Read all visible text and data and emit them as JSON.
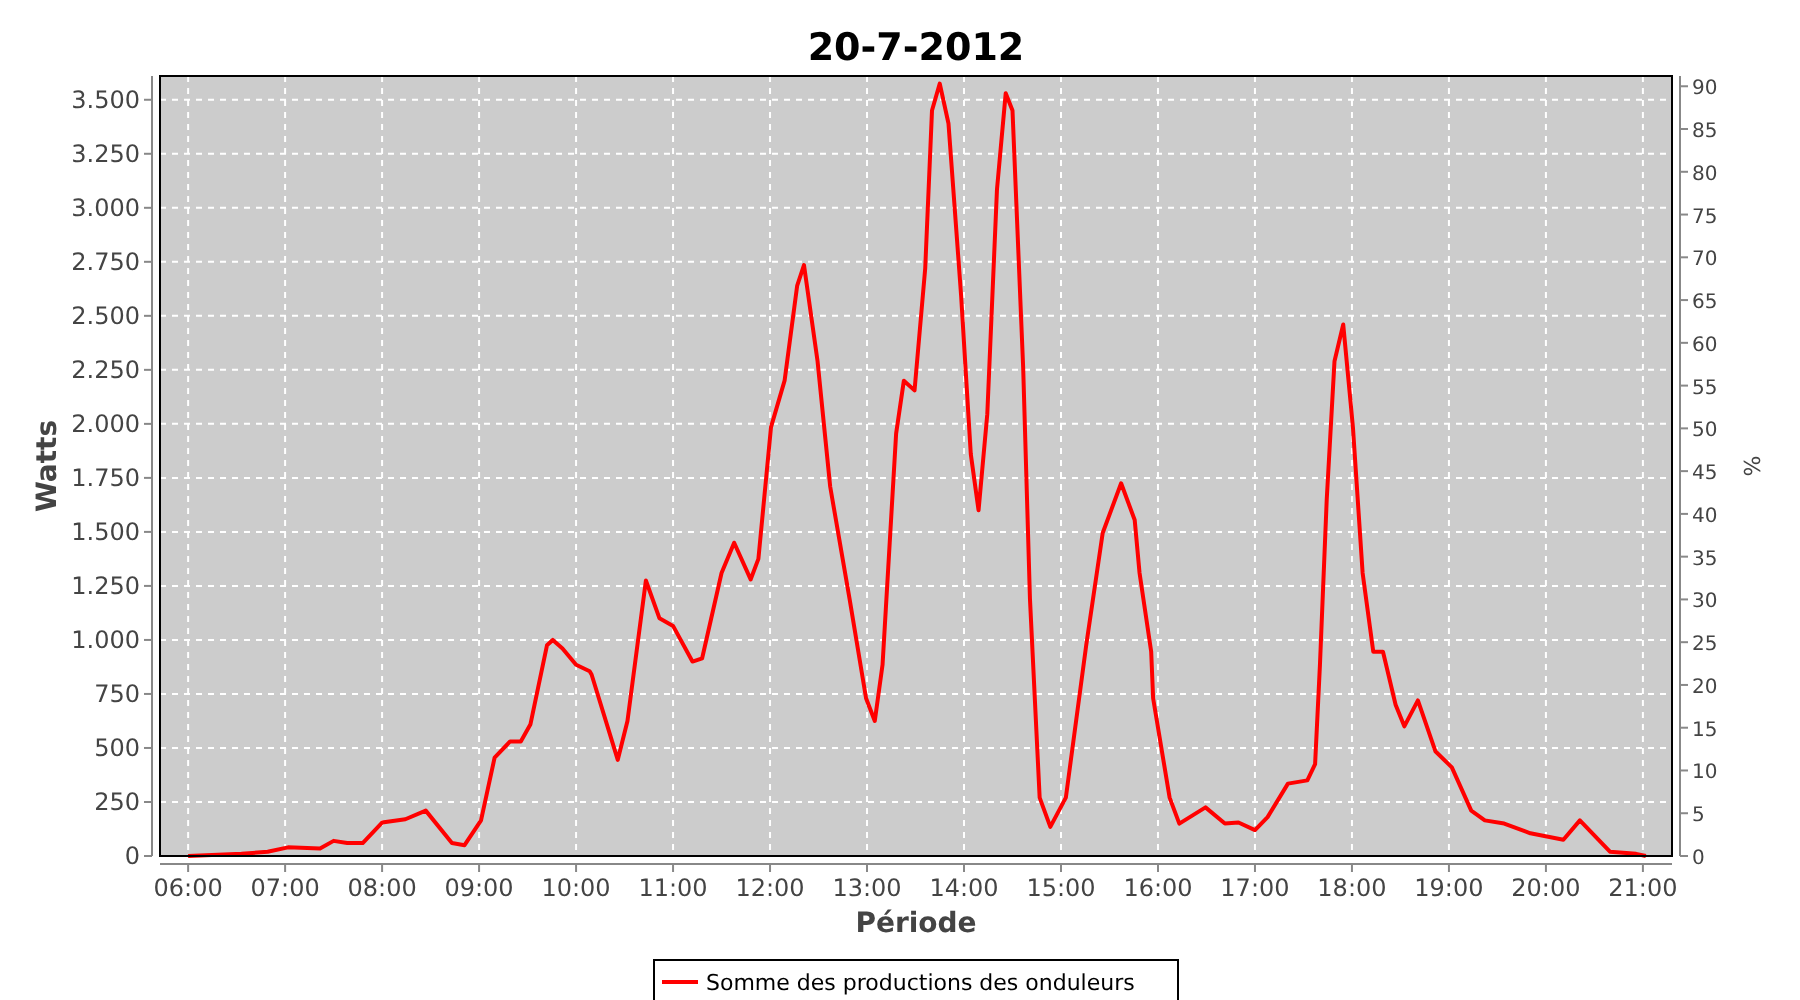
{
  "chart_data": {
    "type": "line",
    "title": "20-7-2012",
    "xlabel": "Période",
    "ylabel": "Watts",
    "y2label": "%",
    "xlim": [
      5.71,
      21.3
    ],
    "xticks": [
      {
        "value": 6,
        "label": "06:00"
      },
      {
        "value": 7,
        "label": "07:00"
      },
      {
        "value": 8,
        "label": "08:00"
      },
      {
        "value": 9,
        "label": "09:00"
      },
      {
        "value": 10,
        "label": "10:00"
      },
      {
        "value": 11,
        "label": "11:00"
      },
      {
        "value": 12,
        "label": "12:00"
      },
      {
        "value": 13,
        "label": "13:00"
      },
      {
        "value": 14,
        "label": "14:00"
      },
      {
        "value": 15,
        "label": "15:00"
      },
      {
        "value": 16,
        "label": "16:00"
      },
      {
        "value": 17,
        "label": "17:00"
      },
      {
        "value": 18,
        "label": "18:00"
      },
      {
        "value": 19,
        "label": "19:00"
      },
      {
        "value": 20,
        "label": "20:00"
      },
      {
        "value": 21,
        "label": "21:00"
      }
    ],
    "ylim": [
      0,
      3610
    ],
    "yticks": [
      0,
      250,
      500,
      750,
      {
        "value": 1000,
        "label": "1.000"
      },
      {
        "value": 1250,
        "label": "1.250"
      },
      {
        "value": 1500,
        "label": "1.500"
      },
      {
        "value": 1750,
        "label": "1.750"
      },
      {
        "value": 2000,
        "label": "2.000"
      },
      {
        "value": 2250,
        "label": "2.250"
      },
      {
        "value": 2500,
        "label": "2.500"
      },
      {
        "value": 2750,
        "label": "2.750"
      },
      {
        "value": 3000,
        "label": "3.000"
      },
      {
        "value": 3250,
        "label": "3.250"
      },
      {
        "value": 3500,
        "label": "3.500"
      }
    ],
    "y2lim": [
      0,
      91.2
    ],
    "y2ticks": [
      0,
      5,
      10,
      15,
      20,
      25,
      30,
      35,
      40,
      45,
      50,
      55,
      60,
      65,
      70,
      75,
      80,
      85,
      90
    ],
    "grid": true,
    "legend": "bottom",
    "marker": "none",
    "line_style": "solid",
    "series": [
      {
        "name": "Somme des productions des onduleurs",
        "color": "#ff0000",
        "x": [
          6.0,
          6.55,
          6.82,
          7.03,
          7.36,
          7.5,
          7.64,
          7.8,
          8.0,
          8.24,
          8.45,
          8.72,
          8.85,
          9.02,
          9.16,
          9.32,
          9.43,
          9.53,
          9.7,
          9.76,
          9.86,
          10.0,
          10.14,
          10.16,
          10.43,
          10.53,
          10.72,
          10.86,
          11.0,
          11.2,
          11.3,
          11.5,
          11.63,
          11.8,
          11.88,
          12.01,
          12.15,
          12.28,
          12.35,
          12.49,
          12.62,
          12.82,
          12.99,
          13.08,
          13.16,
          13.3,
          13.38,
          13.49,
          13.6,
          13.67,
          13.75,
          13.84,
          13.97,
          14.07,
          14.15,
          14.24,
          14.34,
          14.43,
          14.5,
          14.61,
          14.68,
          14.78,
          14.89,
          15.05,
          15.26,
          15.43,
          15.62,
          15.76,
          15.81,
          15.93,
          15.95,
          16.12,
          16.22,
          16.49,
          16.69,
          16.83,
          17.0,
          17.13,
          17.34,
          17.54,
          17.62,
          17.67,
          17.74,
          17.82,
          17.91,
          18.01,
          18.11,
          18.22,
          18.32,
          18.45,
          18.54,
          18.68,
          18.86,
          19.03,
          19.23,
          19.37,
          19.57,
          19.84,
          20.18,
          20.35,
          20.66,
          20.93,
          21.03
        ],
        "values": [
          0,
          10,
          20,
          40,
          35,
          70,
          60,
          60,
          155,
          170,
          210,
          60,
          50,
          165,
          455,
          530,
          530,
          610,
          975,
          1000,
          960,
          885,
          855,
          840,
          445,
          625,
          1275,
          1100,
          1065,
          900,
          915,
          1310,
          1450,
          1280,
          1375,
          1985,
          2200,
          2640,
          2735,
          2290,
          1710,
          1190,
          730,
          625,
          885,
          1955,
          2200,
          2155,
          2720,
          3450,
          3575,
          3390,
          2595,
          1860,
          1600,
          2045,
          3085,
          3530,
          3450,
          2260,
          1190,
          270,
          135,
          270,
          975,
          1495,
          1725,
          1555,
          1310,
          945,
          730,
          270,
          150,
          225,
          150,
          155,
          120,
          180,
          335,
          350,
          425,
          885,
          1650,
          2290,
          2460,
          1985,
          1310,
          945,
          945,
          700,
          600,
          720,
          485,
          410,
          210,
          165,
          150,
          105,
          75,
          165,
          20,
          10,
          0
        ]
      }
    ]
  }
}
